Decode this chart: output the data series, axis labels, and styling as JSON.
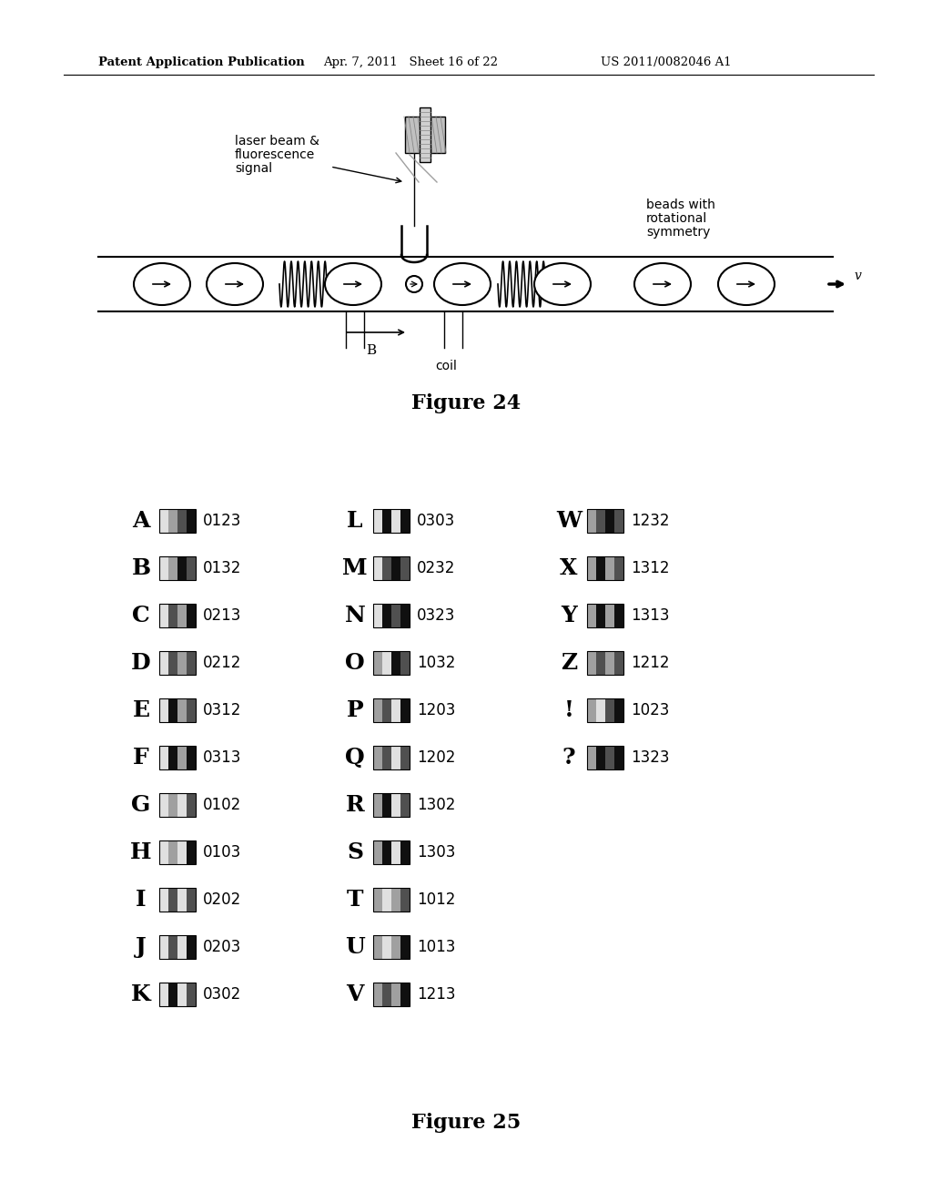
{
  "header_left": "Patent Application Publication",
  "header_mid": "Apr. 7, 2011   Sheet 16 of 22",
  "header_right": "US 2011/0082046 A1",
  "fig24_label": "Figure 24",
  "fig25_label": "Figure 25",
  "digit_colors": {
    "0": "#e0e0e0",
    "1": "#a0a0a0",
    "2": "#505050",
    "3": "#101010"
  },
  "fig25_entries": [
    [
      "A",
      "0123"
    ],
    [
      "B",
      "0132"
    ],
    [
      "C",
      "0213"
    ],
    [
      "D",
      "0212"
    ],
    [
      "E",
      "0312"
    ],
    [
      "F",
      "0313"
    ],
    [
      "G",
      "0102"
    ],
    [
      "H",
      "0103"
    ],
    [
      "I",
      "0202"
    ],
    [
      "J",
      "0203"
    ],
    [
      "K",
      "0302"
    ],
    [
      "L",
      "0303"
    ],
    [
      "M",
      "0232"
    ],
    [
      "N",
      "0323"
    ],
    [
      "O",
      "1032"
    ],
    [
      "P",
      "1203"
    ],
    [
      "Q",
      "1202"
    ],
    [
      "R",
      "1302"
    ],
    [
      "S",
      "1303"
    ],
    [
      "T",
      "1012"
    ],
    [
      "U",
      "1013"
    ],
    [
      "V",
      "1213"
    ],
    [
      "W",
      "1232"
    ],
    [
      "X",
      "1312"
    ],
    [
      "Y",
      "1313"
    ],
    [
      "Z",
      "1212"
    ],
    [
      "!",
      "1023"
    ],
    [
      "?",
      "1323"
    ]
  ]
}
